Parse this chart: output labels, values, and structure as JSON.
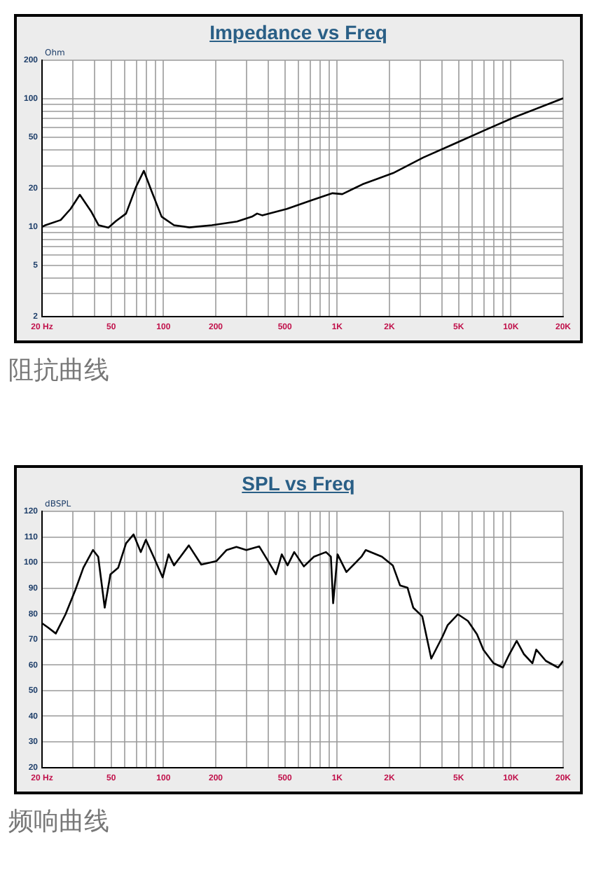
{
  "chart_data": [
    {
      "type": "line",
      "title": "Impedance vs Freq",
      "ylabel": "Ohm",
      "log": "xy",
      "grid": true,
      "legend": false,
      "marker": "none",
      "line_style": "solid",
      "annotations": [
        "阻抗曲线"
      ],
      "xlim": [
        20,
        20000
      ],
      "xticks": [
        {
          "value": 20,
          "label": "20 Hz"
        },
        {
          "value": 30,
          "label": null
        },
        {
          "value": 40,
          "label": null
        },
        50,
        {
          "value": 60,
          "label": null
        },
        {
          "value": 70,
          "label": null
        },
        {
          "value": 80,
          "label": null
        },
        {
          "value": 90,
          "label": null
        },
        100,
        200,
        {
          "value": 300,
          "label": null
        },
        {
          "value": 400,
          "label": null
        },
        500,
        {
          "value": 600,
          "label": null
        },
        {
          "value": 700,
          "label": null
        },
        {
          "value": 800,
          "label": null
        },
        {
          "value": 900,
          "label": null
        },
        {
          "value": 1000,
          "label": "1K"
        },
        {
          "value": 2000,
          "label": "2K"
        },
        {
          "value": 3000,
          "label": null
        },
        {
          "value": 4000,
          "label": null
        },
        {
          "value": 5000,
          "label": "5K"
        },
        {
          "value": 6000,
          "label": null
        },
        {
          "value": 7000,
          "label": null
        },
        {
          "value": 8000,
          "label": null
        },
        {
          "value": 9000,
          "label": null
        },
        {
          "value": 10000,
          "label": "10K"
        },
        {
          "value": 20000,
          "label": "20K"
        }
      ],
      "ylim": [
        2,
        200
      ],
      "yticks": [
        2,
        {
          "value": 3,
          "label": null
        },
        {
          "value": 4,
          "label": null
        },
        5,
        {
          "value": 6,
          "label": null
        },
        {
          "value": 7,
          "label": null
        },
        {
          "value": 8,
          "label": null
        },
        {
          "value": 9,
          "label": null
        },
        10,
        20,
        {
          "value": 30,
          "label": null
        },
        {
          "value": 40,
          "label": null
        },
        50,
        {
          "value": 60,
          "label": null
        },
        {
          "value": 70,
          "label": null
        },
        {
          "value": 80,
          "label": null
        },
        {
          "value": 90,
          "label": null
        },
        100,
        200
      ],
      "series": [
        {
          "color": "#000000",
          "x": [
            20,
            20.9,
            25.6,
            29.2,
            33,
            38.2,
            42.3,
            48.2,
            53.3,
            60.9,
            69.6,
            77.1,
            85.3,
            97.6,
            115,
            141,
            190,
            265,
            323,
            346,
            370,
            513,
            720,
            940,
            1070,
            1400,
            2100,
            3130,
            4700,
            7000,
            10500,
            20000
          ],
          "values": [
            10,
            10.3,
            11.3,
            13.8,
            17.8,
            13.3,
            10.3,
            9.85,
            11.1,
            12.7,
            20.6,
            27.4,
            19.1,
            12,
            10.3,
            9.9,
            10.3,
            11,
            12,
            12.7,
            12.3,
            13.8,
            16.2,
            18.3,
            18,
            21.5,
            26.3,
            34.8,
            44.4,
            56.5,
            71.9,
            101
          ]
        }
      ]
    },
    {
      "type": "line",
      "title": "SPL vs Freq",
      "ylabel": "dBSPL",
      "log": "x",
      "grid": true,
      "legend": false,
      "marker": "none",
      "line_style": "solid",
      "annotations": [
        "频响曲线"
      ],
      "xlim": [
        20,
        20000
      ],
      "xticks": [
        {
          "value": 20,
          "label": "20 Hz"
        },
        {
          "value": 30,
          "label": null
        },
        {
          "value": 40,
          "label": null
        },
        50,
        {
          "value": 60,
          "label": null
        },
        {
          "value": 70,
          "label": null
        },
        {
          "value": 80,
          "label": null
        },
        {
          "value": 90,
          "label": null
        },
        100,
        200,
        {
          "value": 300,
          "label": null
        },
        {
          "value": 400,
          "label": null
        },
        500,
        {
          "value": 600,
          "label": null
        },
        {
          "value": 700,
          "label": null
        },
        {
          "value": 800,
          "label": null
        },
        {
          "value": 900,
          "label": null
        },
        {
          "value": 1000,
          "label": "1K"
        },
        {
          "value": 2000,
          "label": "2K"
        },
        {
          "value": 3000,
          "label": null
        },
        {
          "value": 4000,
          "label": null
        },
        {
          "value": 5000,
          "label": "5K"
        },
        {
          "value": 6000,
          "label": null
        },
        {
          "value": 7000,
          "label": null
        },
        {
          "value": 8000,
          "label": null
        },
        {
          "value": 9000,
          "label": null
        },
        {
          "value": 10000,
          "label": "10K"
        },
        {
          "value": 20000,
          "label": "20K"
        }
      ],
      "ylim": [
        20,
        120
      ],
      "yticks": [
        20,
        30,
        40,
        50,
        60,
        70,
        80,
        90,
        100,
        110,
        120
      ],
      "series": [
        {
          "color": "#000000",
          "x": [
            20,
            21.7,
            24,
            27.3,
            31.1,
            34.6,
            39.3,
            42.1,
            45.9,
            49.5,
            54.9,
            60.9,
            67.3,
            74,
            79.2,
            87.7,
            98.9,
            107,
            115,
            140,
            165,
            202,
            231,
            263,
            300,
            356,
            393,
            444,
            480,
            518,
            566,
            643,
            735,
            862,
            920,
            948,
            1005,
            1130,
            1380,
            1460,
            1810,
            2090,
            2300,
            2540,
            2740,
            3090,
            3480,
            4040,
            4320,
            4960,
            5660,
            6380,
            6950,
            7940,
            9000,
            9800,
            10800,
            11900,
            13300,
            14000,
            15900,
            18700,
            20000
          ],
          "values": [
            76.3,
            74.6,
            72.3,
            79.8,
            89.3,
            98,
            104.9,
            102.3,
            82.4,
            95.4,
            98,
            107.5,
            111,
            104.1,
            108.9,
            102.3,
            94.2,
            103.2,
            98.9,
            106.7,
            99.2,
            100.6,
            104.9,
            106.1,
            104.9,
            106.3,
            101.5,
            95.4,
            103.2,
            98.9,
            104.1,
            98.5,
            102.3,
            104.1,
            102.3,
            84.1,
            103.2,
            96.3,
            102.3,
            104.9,
            102.3,
            98.9,
            91.1,
            90.2,
            82.4,
            79,
            62.5,
            71.1,
            75.5,
            79.8,
            77.2,
            72,
            65.9,
            60.7,
            59,
            64.2,
            69.4,
            64.2,
            60.7,
            66,
            61.6,
            59,
            61.6
          ]
        }
      ]
    }
  ]
}
